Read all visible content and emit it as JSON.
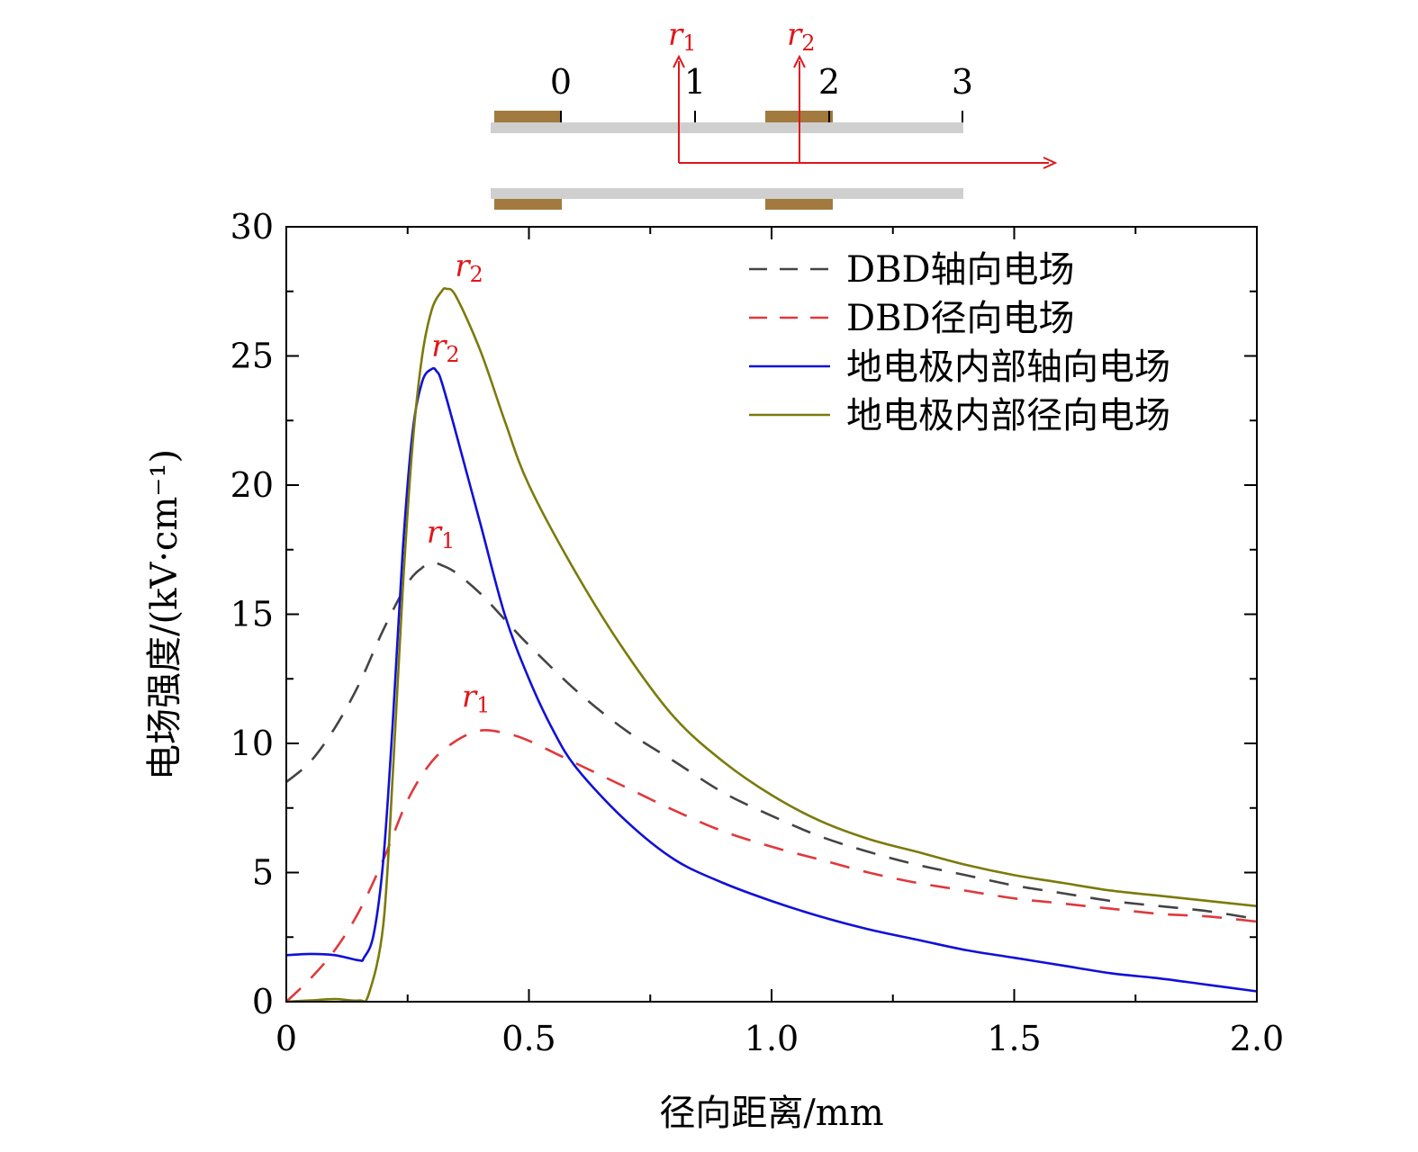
{
  "chart_data": {
    "type": "line",
    "xlabel": "径向距离/mm",
    "ylabel": "电场强度/(kV·cm⁻¹)",
    "xlim": [
      0,
      2.0
    ],
    "ylim": [
      0,
      30
    ],
    "xticks": [
      "0",
      "0.5",
      "1.0",
      "1.5",
      "2.0"
    ],
    "yticks": [
      "0",
      "5",
      "10",
      "15",
      "20",
      "25",
      "30"
    ],
    "grid": false,
    "legend_position": "top-right",
    "series": [
      {
        "name": "DBD轴向电场",
        "style": "dashed",
        "color": "#444444",
        "x": [
          0,
          0.05,
          0.1,
          0.15,
          0.2,
          0.25,
          0.28,
          0.3,
          0.32,
          0.35,
          0.4,
          0.45,
          0.5,
          0.6,
          0.7,
          0.8,
          0.9,
          1.0,
          1.1,
          1.2,
          1.3,
          1.4,
          1.5,
          1.6,
          1.7,
          1.8,
          1.9,
          2.0
        ],
        "y": [
          8.5,
          9.3,
          10.6,
          12.3,
          14.4,
          16.2,
          16.8,
          17.0,
          16.9,
          16.6,
          15.8,
          14.8,
          13.8,
          12.0,
          10.5,
          9.3,
          8.1,
          7.2,
          6.4,
          5.8,
          5.3,
          4.9,
          4.5,
          4.2,
          3.9,
          3.7,
          3.5,
          3.2
        ]
      },
      {
        "name": "DBD径向电场",
        "style": "dashed",
        "color": "#e0383c",
        "x": [
          0,
          0.05,
          0.1,
          0.15,
          0.2,
          0.25,
          0.3,
          0.35,
          0.4,
          0.45,
          0.5,
          0.6,
          0.7,
          0.8,
          0.9,
          1.0,
          1.1,
          1.2,
          1.3,
          1.4,
          1.5,
          1.6,
          1.7,
          1.8,
          1.9,
          2.0
        ],
        "y": [
          0,
          0.9,
          2.0,
          3.5,
          5.5,
          7.8,
          9.3,
          10.1,
          10.5,
          10.4,
          10.1,
          9.2,
          8.3,
          7.4,
          6.6,
          6.0,
          5.5,
          5.0,
          4.6,
          4.3,
          4.0,
          3.8,
          3.6,
          3.4,
          3.3,
          3.1
        ]
      },
      {
        "name": "地电极内部轴向电场",
        "style": "solid",
        "color": "#1010d8",
        "x": [
          0,
          0.05,
          0.1,
          0.15,
          0.16,
          0.18,
          0.2,
          0.22,
          0.24,
          0.26,
          0.28,
          0.3,
          0.31,
          0.32,
          0.35,
          0.4,
          0.45,
          0.5,
          0.55,
          0.6,
          0.7,
          0.8,
          0.9,
          1.0,
          1.1,
          1.2,
          1.3,
          1.4,
          1.5,
          1.6,
          1.7,
          1.8,
          1.9,
          2.0
        ],
        "y": [
          1.8,
          1.85,
          1.8,
          1.6,
          1.7,
          2.6,
          5.5,
          11.0,
          17.5,
          22.0,
          24.0,
          24.5,
          24.4,
          24.0,
          22.0,
          18.5,
          15.0,
          12.5,
          10.5,
          9.0,
          7.0,
          5.5,
          4.6,
          3.9,
          3.3,
          2.8,
          2.4,
          2.0,
          1.7,
          1.4,
          1.1,
          0.9,
          0.65,
          0.4
        ]
      },
      {
        "name": "地电极内部径向电场",
        "style": "solid",
        "color": "#7c7a0a",
        "x": [
          0,
          0.05,
          0.1,
          0.15,
          0.17,
          0.2,
          0.22,
          0.24,
          0.26,
          0.28,
          0.3,
          0.32,
          0.33,
          0.35,
          0.4,
          0.45,
          0.5,
          0.6,
          0.7,
          0.8,
          0.9,
          1.0,
          1.1,
          1.2,
          1.3,
          1.4,
          1.5,
          1.6,
          1.7,
          1.8,
          1.9,
          2.0
        ],
        "y": [
          0,
          0.05,
          0.1,
          0.05,
          0.3,
          3.0,
          9.0,
          16.0,
          21.5,
          25.0,
          26.8,
          27.5,
          27.6,
          27.3,
          25.2,
          22.5,
          20.0,
          16.5,
          13.5,
          11.0,
          9.3,
          8.0,
          7.0,
          6.3,
          5.8,
          5.3,
          4.9,
          4.6,
          4.3,
          4.1,
          3.9,
          3.7
        ]
      }
    ],
    "annotations": [
      {
        "text": "r",
        "sub": "2",
        "series": "地电极内部径向电场",
        "x": 0.34,
        "y": 27.6
      },
      {
        "text": "r",
        "sub": "2",
        "series": "地电极内部轴向电场",
        "x": 0.31,
        "y": 24.5
      },
      {
        "text": "r",
        "sub": "1",
        "series": "DBD轴向电场",
        "x": 0.3,
        "y": 17.0
      },
      {
        "text": "r",
        "sub": "1",
        "series": "DBD径向电场",
        "x": 0.38,
        "y": 10.5
      }
    ]
  },
  "schematic": {
    "scale_labels": [
      "0",
      "1",
      "2",
      "3"
    ],
    "arrow_labels": [
      {
        "text": "r",
        "sub": "1"
      },
      {
        "text": "r",
        "sub": "2"
      }
    ],
    "electrode_color": "#a27a3f",
    "dielectric_color": "#cfcfcf",
    "arrow_color": "#e0161b"
  }
}
